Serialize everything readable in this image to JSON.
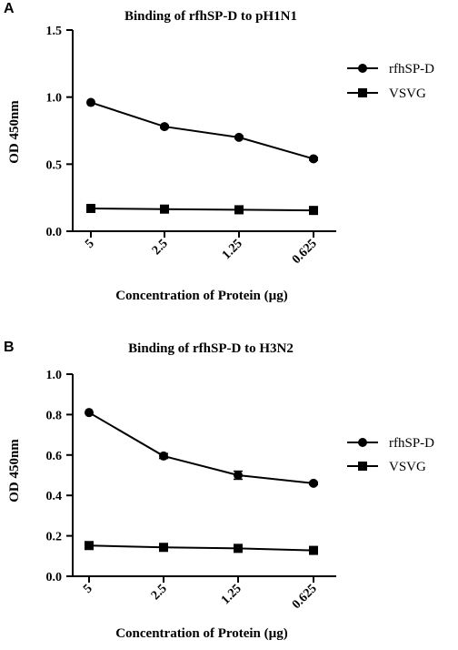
{
  "chart_data": [
    {
      "panel": "A",
      "type": "line",
      "title": "Binding  of rfhSP-D to pH1N1",
      "xlabel": "Concentration of Protein (µg)",
      "ylabel": "OD 450nm",
      "categories": [
        "5",
        "2.5",
        "1.25",
        "0.625"
      ],
      "ylim": [
        0,
        1.5
      ],
      "yticks": [
        "0.0",
        "0.5",
        "1.0",
        "1.5"
      ],
      "ytick_values": [
        0,
        0.5,
        1.0,
        1.5
      ],
      "legend_position": "right",
      "series": [
        {
          "name": "rfhSP-D",
          "marker": "circle",
          "values": [
            0.96,
            0.78,
            0.7,
            0.54
          ],
          "errors": [
            0,
            0.01,
            0.01,
            0.01
          ]
        },
        {
          "name": "VSVG",
          "marker": "square",
          "values": [
            0.17,
            0.165,
            0.16,
            0.155
          ],
          "errors": [
            0,
            0,
            0,
            0
          ]
        }
      ]
    },
    {
      "panel": "B",
      "type": "line",
      "title": "Binding of rfhSP-D to H3N2",
      "xlabel": "Concentration of Protein (µg)",
      "ylabel": "OD 450nm",
      "categories": [
        "5",
        "2.5",
        "1.25",
        "0.625"
      ],
      "ylim": [
        0,
        1.0
      ],
      "yticks": [
        "0.0",
        "0.2",
        "0.4",
        "0.6",
        "0.8",
        "1.0"
      ],
      "ytick_values": [
        0,
        0.2,
        0.4,
        0.6,
        0.8,
        1.0
      ],
      "legend_position": "right",
      "series": [
        {
          "name": "rfhSP-D",
          "marker": "circle",
          "values": [
            0.81,
            0.595,
            0.5,
            0.46
          ],
          "errors": [
            0,
            0.012,
            0.02,
            0.006
          ]
        },
        {
          "name": "VSVG",
          "marker": "square",
          "values": [
            0.152,
            0.143,
            0.138,
            0.128
          ],
          "errors": [
            0,
            0,
            0,
            0.006
          ]
        }
      ]
    }
  ]
}
